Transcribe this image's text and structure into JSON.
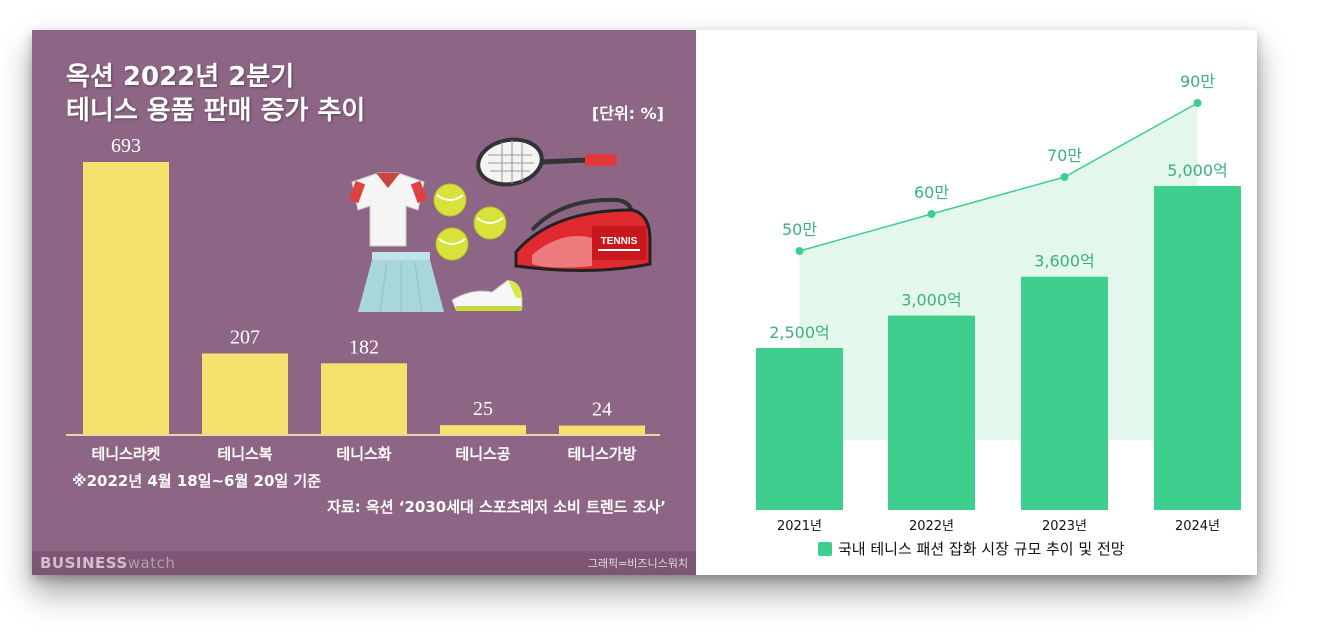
{
  "left_panel": {
    "title_line1": "옥션 2022년 2분기",
    "title_line2": "테니스 용품 판매 증가 추이",
    "unit": "[단위: %]",
    "footnote": "※2022년 4월 18일~6월 20일 기준",
    "source": "자료: 옥션 ‘2030세대 스포츠레저 소비 트렌드 조사’",
    "brand_bold": "BUSINESS",
    "brand_light": "watch",
    "credit": "그래픽=비즈니스워치",
    "tennis_bag_text": "TENNIS",
    "colors": {
      "background": "#8d6585",
      "bar": "#f6e06e"
    }
  },
  "right_panel": {
    "legend": "국내 테니스 패션 잡화 시장 규모 추이 및 전망",
    "colors": {
      "bar": "#3ecf8e",
      "line": "#3ecf8e",
      "area": "#e4f7ec"
    }
  },
  "chart_data": [
    {
      "type": "bar",
      "title": "옥션 2022년 2분기 테니스 용품 판매 증가 추이",
      "unit": "[단위: %]",
      "categories": [
        "테니스라켓",
        "테니스복",
        "테니스화",
        "테니스공",
        "테니스가방"
      ],
      "values": [
        693,
        207,
        182,
        25,
        24
      ],
      "value_labels": [
        "693",
        "207",
        "182",
        "25",
        "24"
      ],
      "ylim": [
        0,
        693
      ]
    },
    {
      "type": "bar",
      "categories": [
        "2021년",
        "2022년",
        "2023년",
        "2024년"
      ],
      "series": [
        {
          "values": [
            2500,
            3000,
            3600,
            5000
          ],
          "labels": [
            "2,500억",
            "3,000억",
            "3,600억",
            "5,000억"
          ]
        },
        {
          "type": "line",
          "values": [
            50,
            60,
            70,
            90
          ],
          "labels": [
            "50만",
            "60만",
            "70만",
            "90만"
          ]
        }
      ],
      "ylim": [
        0,
        5000
      ]
    }
  ]
}
